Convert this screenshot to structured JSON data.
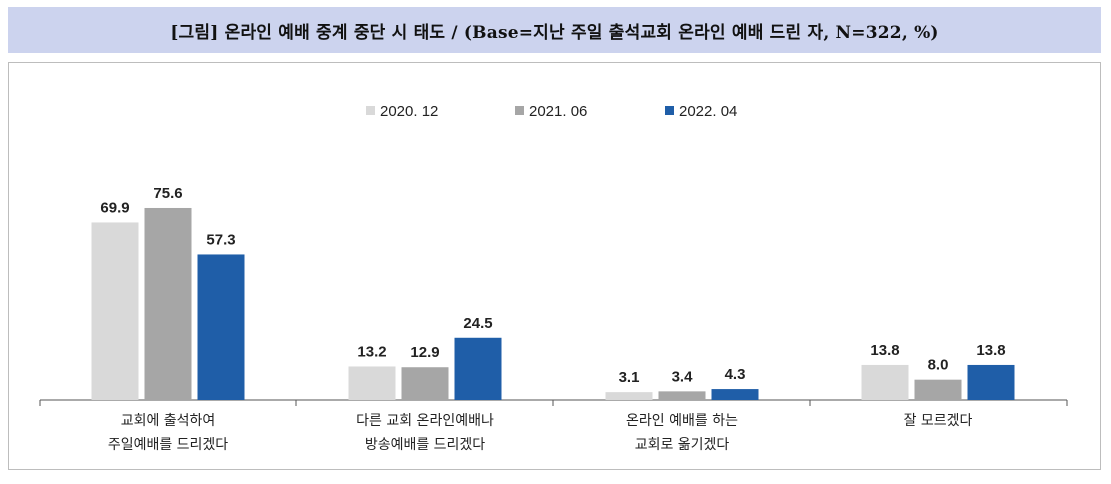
{
  "title": "[그림] 온라인 예배 중계 중단 시 태도 / (Base=지난 주일 출석교회 온라인 예배 드린 자, N=322, %)",
  "chart_data": {
    "type": "bar",
    "categories": [
      [
        "교회에 출석하여",
        "주일예배를 드리겠다"
      ],
      [
        "다른 교회 온라인예배나",
        "방송예배를 드리겠다"
      ],
      [
        "온라인 예배를 하는",
        "교회로 옮기겠다"
      ],
      [
        "잘 모르겠다"
      ]
    ],
    "series": [
      {
        "name": "2020. 12",
        "color": "#d9d9d9",
        "values": [
          69.9,
          13.2,
          3.1,
          13.8
        ]
      },
      {
        "name": "2021. 06",
        "color": "#a6a6a6",
        "values": [
          75.6,
          12.9,
          3.4,
          8.0
        ]
      },
      {
        "name": "2022. 04",
        "color": "#1f5ea8",
        "values": [
          57.3,
          24.5,
          4.3,
          13.8
        ]
      }
    ],
    "ylim": [
      0,
      100
    ],
    "grid": false,
    "legend_position": "top-center",
    "value_labels": true
  }
}
